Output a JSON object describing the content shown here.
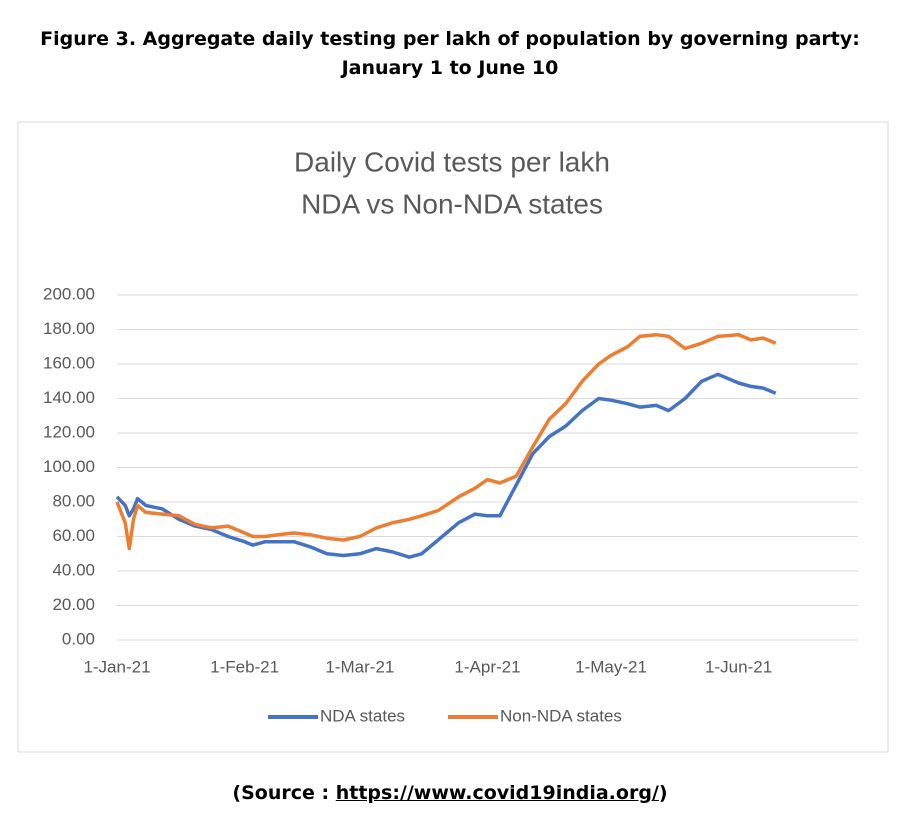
{
  "caption": [
    "Figure 3.  Aggregate daily testing per lakh of population by governing party:",
    "January 1 to June 10"
  ],
  "source": {
    "prefix": "(Source : ",
    "link": "https://www.covid19india.org/",
    "suffix": ")"
  },
  "chart_data": {
    "type": "line",
    "title": [
      "Daily Covid tests per lakh",
      "NDA vs Non-NDA states"
    ],
    "x": [
      "2021-01-01",
      "2021-01-03",
      "2021-01-04",
      "2021-01-05",
      "2021-01-06",
      "2021-01-08",
      "2021-01-12",
      "2021-01-16",
      "2021-01-20",
      "2021-01-24",
      "2021-01-28",
      "2021-02-01",
      "2021-02-03",
      "2021-02-06",
      "2021-02-09",
      "2021-02-13",
      "2021-02-17",
      "2021-02-21",
      "2021-02-25",
      "2021-03-01",
      "2021-03-05",
      "2021-03-09",
      "2021-03-13",
      "2021-03-16",
      "2021-03-20",
      "2021-03-25",
      "2021-03-29",
      "2021-04-01",
      "2021-04-04",
      "2021-04-08",
      "2021-04-12",
      "2021-04-16",
      "2021-04-20",
      "2021-04-24",
      "2021-04-28",
      "2021-05-01",
      "2021-05-05",
      "2021-05-08",
      "2021-05-12",
      "2021-05-15",
      "2021-05-19",
      "2021-05-23",
      "2021-05-27",
      "2021-06-01",
      "2021-06-04",
      "2021-06-07",
      "2021-06-10"
    ],
    "series": [
      {
        "name": "NDA states",
        "color": "#4472c4",
        "values": [
          83,
          78,
          72,
          76,
          82,
          78,
          76,
          70,
          66,
          64,
          60,
          57,
          55,
          57,
          57,
          57,
          54,
          50,
          49,
          50,
          53,
          51,
          48,
          50,
          58,
          68,
          73,
          72,
          72,
          90,
          108,
          118,
          124,
          133,
          140,
          139,
          137,
          135,
          136,
          133,
          140,
          150,
          154,
          149,
          147,
          146,
          143
        ]
      },
      {
        "name": "Non-NDA states",
        "color": "#ed7d31",
        "values": [
          80,
          68,
          53,
          70,
          78,
          74,
          73,
          72,
          67,
          65,
          66,
          62,
          60,
          60,
          61,
          62,
          61,
          59,
          58,
          60,
          65,
          68,
          70,
          72,
          75,
          83,
          88,
          93,
          91,
          95,
          112,
          128,
          137,
          150,
          160,
          165,
          170,
          176,
          177,
          176,
          169,
          172,
          176,
          177,
          174,
          175,
          172
        ]
      }
    ],
    "xlim": [
      "2021-01-01",
      "2021-06-30"
    ],
    "xticks": [
      {
        "value": "2021-01-01",
        "label": "1-Jan-21"
      },
      {
        "value": "2021-02-01",
        "label": "1-Feb-21"
      },
      {
        "value": "2021-03-01",
        "label": "1-Mar-21"
      },
      {
        "value": "2021-04-01",
        "label": "1-Apr-21"
      },
      {
        "value": "2021-05-01",
        "label": "1-May-21"
      },
      {
        "value": "2021-06-01",
        "label": "1-Jun-21"
      }
    ],
    "ylim": [
      0,
      200
    ],
    "yticks": [
      {
        "value": 0,
        "label": "0.00"
      },
      {
        "value": 20,
        "label": "20.00"
      },
      {
        "value": 40,
        "label": "40.00"
      },
      {
        "value": 60,
        "label": "60.00"
      },
      {
        "value": 80,
        "label": "80.00"
      },
      {
        "value": 100,
        "label": "100.00"
      },
      {
        "value": 120,
        "label": "120.00"
      },
      {
        "value": 140,
        "label": "140.00"
      },
      {
        "value": 160,
        "label": "160.00"
      },
      {
        "value": 180,
        "label": "180.00"
      },
      {
        "value": 200,
        "label": "200.00"
      }
    ],
    "grid": true,
    "legend": "bottom"
  }
}
